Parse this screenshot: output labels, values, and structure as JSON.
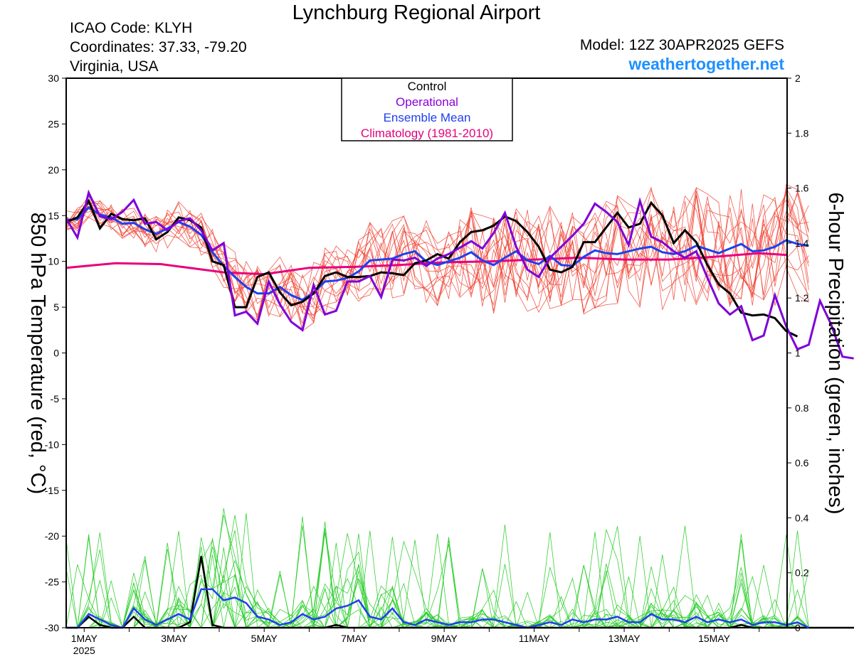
{
  "header": {
    "title": "Lynchburg Regional Airport",
    "icao": "ICAO Code: KLYH",
    "coordinates": "Coordinates: 37.33, -79.20",
    "region": "Virginia, USA",
    "model": "Model: 12Z 30APR2025 GEFS",
    "site": "weathertogether.net"
  },
  "chart_data": {
    "type": "line",
    "ylabel": "850 hPa Temperature (red, °C)",
    "y2label": "6-hour Precipitation (green, inches)",
    "ylim": [
      -30,
      30
    ],
    "y2lim": [
      0,
      2
    ],
    "xlim_days": [
      0.6,
      16.62
    ],
    "yticks": [
      "30",
      "25",
      "20",
      "15",
      "10",
      "5",
      "0",
      "-5",
      "-10",
      "-15",
      "-20",
      "-25",
      "-30"
    ],
    "y2ticks": [
      "2",
      "1.8",
      "1.6",
      "1.4",
      "1.2",
      "1",
      "0.8",
      "0.6",
      "0.4",
      "0.2",
      "0"
    ],
    "xticks": [
      {
        "day": 1,
        "label": "1MAY",
        "sub": "2025"
      },
      {
        "day": 3,
        "label": "3MAY",
        "sub": ""
      },
      {
        "day": 5,
        "label": "5MAY",
        "sub": ""
      },
      {
        "day": 7,
        "label": "7MAY",
        "sub": ""
      },
      {
        "day": 9,
        "label": "9MAY",
        "sub": ""
      },
      {
        "day": 11,
        "label": "11MAY",
        "sub": ""
      },
      {
        "day": 13,
        "label": "13MAY",
        "sub": ""
      },
      {
        "day": 15,
        "label": "15MAY",
        "sub": ""
      }
    ],
    "legend": {
      "placement": "top-center",
      "entries": [
        {
          "label": "Control",
          "color": "#000000"
        },
        {
          "label": "Operational",
          "color": "#8b00d6"
        },
        {
          "label": "Ensemble Mean",
          "color": "#1f3ff0"
        },
        {
          "label": "Climatology (1981-2010)",
          "color": "#e5007e"
        }
      ]
    },
    "colors": {
      "control": "#000000",
      "operational": "#7f00d8",
      "mean": "#1f3ff0",
      "climatology": "#e8007d",
      "members_temp": "#f04030",
      "members_precip": "#22cc22"
    },
    "x_start_day": 0.6,
    "x_step_day": 0.25,
    "temperature": {
      "control": [
        14.3,
        14.8,
        16.6,
        13.6,
        15.2,
        14.6,
        14.5,
        14.7,
        12.4,
        13.2,
        14.8,
        14.5,
        13.7,
        10.0,
        9.6,
        5.0,
        5.0,
        8.3,
        8.8,
        6.6,
        5.2,
        5.6,
        6.5,
        8.4,
        8.8,
        8.3,
        8.3,
        8.4,
        8.8,
        8.7,
        8.5,
        9.8,
        10.1,
        10.8,
        10.3,
        12.1,
        13.2,
        13.4,
        13.9,
        14.9,
        14.4,
        13.2,
        11.6,
        9.1,
        8.8,
        9.4,
        12.1,
        12.1,
        13.7,
        15.3,
        13.7,
        14.1,
        16.4,
        15.0,
        12.0,
        13.4,
        12.1,
        9.6,
        7.5,
        6.5,
        4.4,
        4.1,
        4.2,
        3.8,
        2.4,
        1.8
      ],
      "operational": [
        14.7,
        12.6,
        17.5,
        14.9,
        14.6,
        15.4,
        16.7,
        14.1,
        14.3,
        13.4,
        14.4,
        14.7,
        13.4,
        11.2,
        12.0,
        4.1,
        4.5,
        3.2,
        7.8,
        5.3,
        3.4,
        2.5,
        7.4,
        4.2,
        4.6,
        7.8,
        7.8,
        8.4,
        6.1,
        10.2,
        10.1,
        10.4,
        9.5,
        10.3,
        10.8,
        11.5,
        12.2,
        11.4,
        13.1,
        15.3,
        11.6,
        9.1,
        8.3,
        10.4,
        11.6,
        12.8,
        14.1,
        16.3,
        15.4,
        14.3,
        11.8,
        16.6,
        12.7,
        12.1,
        11.1,
        10.4,
        11.1,
        8.2,
        5.4,
        4.2,
        5.1,
        1.4,
        1.9,
        6.3,
        2.9,
        0.4,
        0.9,
        5.7,
        3.1,
        -0.4,
        -0.6
      ],
      "mean": [
        14.5,
        14.6,
        15.9,
        15.1,
        14.8,
        14.1,
        14.2,
        13.5,
        13.0,
        13.6,
        14.3,
        13.8,
        12.9,
        11.0,
        9.5,
        8.3,
        7.2,
        6.5,
        6.5,
        7.2,
        6.3,
        5.8,
        6.6,
        7.8,
        7.9,
        8.2,
        8.9,
        10.1,
        10.2,
        10.3,
        10.8,
        11.1,
        10.0,
        9.6,
        10.0,
        10.4,
        11.0,
        10.1,
        9.6,
        10.4,
        11.1,
        10.1,
        9.7,
        10.6,
        9.6,
        9.5,
        10.5,
        11.2,
        10.9,
        10.8,
        11.1,
        11.4,
        11.6,
        11.0,
        10.8,
        11.1,
        11.7,
        11.3,
        10.9,
        11.4,
        11.9,
        11.1,
        11.2,
        11.6,
        12.3,
        11.9,
        11.7
      ],
      "climatology_days": [
        0.6,
        1.7,
        2.7,
        4.1,
        5.0,
        6.0,
        7.0,
        8.0,
        9.0,
        10.0,
        11.0,
        12.0,
        13.0,
        14.0,
        15.0,
        16.0,
        16.6
      ],
      "climatology": [
        9.3,
        9.8,
        9.7,
        8.8,
        8.6,
        9.3,
        9.4,
        9.6,
        9.9,
        10.0,
        10.2,
        10.4,
        10.2,
        10.2,
        10.5,
        10.9,
        10.7
      ]
    },
    "precipitation": {
      "control": [
        0,
        0,
        0.04,
        0.01,
        0,
        0,
        0.04,
        0,
        0,
        0,
        0,
        0.02,
        0.26,
        0.01,
        0,
        0,
        0,
        0,
        0,
        0,
        0,
        0,
        0,
        0,
        0.01,
        0,
        0,
        0,
        0,
        0,
        0,
        0,
        0,
        0,
        0,
        0,
        0,
        0,
        0,
        0,
        0,
        0,
        0,
        0,
        0,
        0,
        0,
        0,
        0,
        0,
        0,
        0,
        0,
        0,
        0,
        0,
        0,
        0,
        0,
        0,
        0.01,
        0,
        0,
        0,
        0,
        0,
        0,
        0,
        0,
        0,
        0,
        0,
        0,
        0,
        0
      ],
      "mean": [
        0,
        0,
        0.05,
        0.03,
        0.01,
        0,
        0.07,
        0.03,
        0.01,
        0.03,
        0.05,
        0.03,
        0.14,
        0.14,
        0.1,
        0.11,
        0.09,
        0.04,
        0.03,
        0.01,
        0.02,
        0.05,
        0.03,
        0.04,
        0.07,
        0.08,
        0.1,
        0.04,
        0.03,
        0.07,
        0.02,
        0.01,
        0.03,
        0.02,
        0.01,
        0.02,
        0.02,
        0.03,
        0.03,
        0.02,
        0.01,
        0,
        0.01,
        0.02,
        0.01,
        0.03,
        0.02,
        0.03,
        0.03,
        0.04,
        0.02,
        0.02,
        0.05,
        0.03,
        0.03,
        0.02,
        0.04,
        0.02,
        0.03,
        0.02,
        0.03,
        0.01,
        0.02,
        0.02,
        0.01,
        0.02,
        0
      ]
    },
    "member_count": 15
  }
}
